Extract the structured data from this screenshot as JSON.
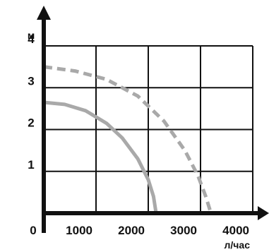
{
  "chart_data": {
    "type": "line",
    "title": "",
    "xlabel": "л/час",
    "ylabel": "м",
    "xlim": [
      0,
      4000
    ],
    "ylim": [
      0,
      4
    ],
    "grid": true,
    "x_ticks": [
      "0",
      "1000",
      "2000",
      "3000",
      "4000"
    ],
    "y_ticks": [
      "1",
      "2",
      "3",
      "4"
    ],
    "series": [
      {
        "style": "solid",
        "color": "#a9a9a9",
        "x": [
          0,
          400,
          800,
          1200,
          1500,
          1800,
          2000,
          2100,
          2150
        ],
        "y": [
          2.65,
          2.6,
          2.45,
          2.15,
          1.8,
          1.3,
          0.8,
          0.4,
          0
        ]
      },
      {
        "style": "dashed",
        "color": "#a9a9a9",
        "x": [
          0,
          600,
          1200,
          1800,
          2300,
          2700,
          2950,
          3100,
          3200
        ],
        "y": [
          3.5,
          3.4,
          3.2,
          2.8,
          2.2,
          1.5,
          0.9,
          0.4,
          0
        ]
      }
    ]
  }
}
